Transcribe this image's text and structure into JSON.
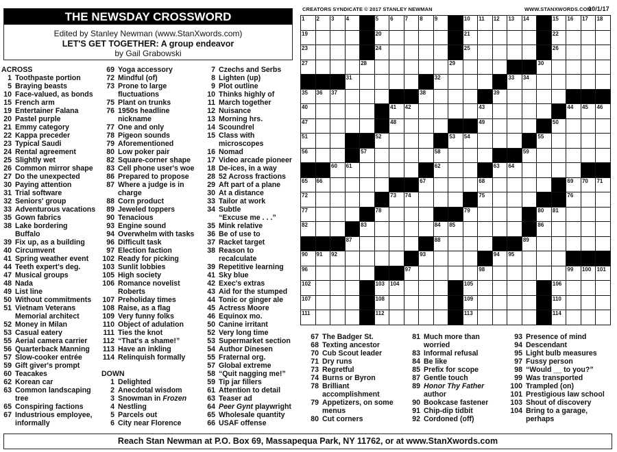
{
  "header": {
    "title": "THE NEWSDAY CROSSWORD",
    "editor": "Edited by Stanley Newman (www.StanXwords.com)",
    "puzzle_title": "LET'S GET TOGETHER: A group endeavor",
    "author": "by Gail Grabowski"
  },
  "top_bar": {
    "copyright": "CREATORS SYNDICATE © 2017 STANLEY NEWMAN",
    "website": "WWW.STANXWORDS.COM",
    "date": "10/1/17"
  },
  "footer": "Reach Stan Newman at P.O. Box 69, Massapequa Park, NY 11762, or at www.StanXwords.com",
  "grid": {
    "rows": [
      "....#.....#.....#....",
      "....#.....#.....#....",
      "....#.....#.....#....",
      "..............##.....",
      "###.....#....#.......",
      "......##....#.....###",
      ".....#...........#...",
      ".....#....##....#....",
      "...##....#.....#.....",
      "...#.........##......",
      "##......#...#......##",
      "......##.........#...",
      ".....#.....#....##...",
      "....#....##....#.....",
      "...#...........#.....",
      "###.....#....##......",
      ".......#....#.....###",
      ".....##..............",
      "....#.....#.....#....",
      "....#.....#.....#....",
      "....#.....#.....#...."
    ]
  },
  "across_label": "ACROSS",
  "down_label": "DOWN",
  "across": [
    {
      "n": "1",
      "t": "Toothpaste portion"
    },
    {
      "n": "5",
      "t": "Braying beasts"
    },
    {
      "n": "10",
      "t": "Face-valued, as bonds"
    },
    {
      "n": "15",
      "t": "French arm"
    },
    {
      "n": "19",
      "t": "Entertainer Falana"
    },
    {
      "n": "20",
      "t": "Pastel purple"
    },
    {
      "n": "21",
      "t": "Emmy category"
    },
    {
      "n": "22",
      "t": "Kappa preceder"
    },
    {
      "n": "23",
      "t": "Typical Saudi"
    },
    {
      "n": "24",
      "t": "Rental agreement"
    },
    {
      "n": "25",
      "t": "Slightly wet"
    },
    {
      "n": "26",
      "t": "Common mirror shape"
    },
    {
      "n": "27",
      "t": "Do the unexpected"
    },
    {
      "n": "30",
      "t": "Paying attention"
    },
    {
      "n": "31",
      "t": "Trial software"
    },
    {
      "n": "32",
      "t": "Seniors' group"
    },
    {
      "n": "33",
      "t": "Adventurous vacations"
    },
    {
      "n": "35",
      "t": "Gown fabrics"
    },
    {
      "n": "38",
      "t": "Lake bordering Buffalo"
    },
    {
      "n": "39",
      "t": "Fix up, as a building"
    },
    {
      "n": "40",
      "t": "Circumvent"
    },
    {
      "n": "41",
      "t": "Spring weather event"
    },
    {
      "n": "44",
      "t": "Teeth expert's deg."
    },
    {
      "n": "47",
      "t": "Musical groups"
    },
    {
      "n": "48",
      "t": "Nada"
    },
    {
      "n": "49",
      "t": "List line"
    },
    {
      "n": "50",
      "t": "Without commitments"
    },
    {
      "n": "51",
      "t": "Vietnam Veterans Memorial architect"
    },
    {
      "n": "52",
      "t": "Money in Milan"
    },
    {
      "n": "53",
      "t": "Casual eatery"
    },
    {
      "n": "55",
      "t": "Aerial camera carrier"
    },
    {
      "n": "56",
      "t": "Quarterback Manning"
    },
    {
      "n": "57",
      "t": "Slow-cooker entrée"
    },
    {
      "n": "59",
      "t": "Gift giver's prompt"
    },
    {
      "n": "60",
      "t": "Teacakes"
    },
    {
      "n": "62",
      "t": "Korean car"
    },
    {
      "n": "63",
      "t": "Common landscaping tree"
    },
    {
      "n": "65",
      "t": "Conspiring factions"
    },
    {
      "n": "67",
      "t": "Industrious employee, informally"
    },
    {
      "n": "69",
      "t": "Yoga accessory"
    },
    {
      "n": "72",
      "t": "Mindful (of)"
    },
    {
      "n": "73",
      "t": "Prone to large fluctuations"
    },
    {
      "n": "75",
      "t": "Plant on trunks"
    },
    {
      "n": "76",
      "t": "1950s headline nickname"
    },
    {
      "n": "77",
      "t": "One and only"
    },
    {
      "n": "78",
      "t": "Pigeon sounds"
    },
    {
      "n": "79",
      "t": "Aforementioned"
    },
    {
      "n": "80",
      "t": "Low poker pair"
    },
    {
      "n": "82",
      "t": "Square-corner shape"
    },
    {
      "n": "83",
      "t": "Cell phone user's woe"
    },
    {
      "n": "86",
      "t": "Prepared to propose"
    },
    {
      "n": "87",
      "t": "Where a judge is in charge"
    },
    {
      "n": "88",
      "t": "Corn product"
    },
    {
      "n": "89",
      "t": "Jeweled toppers"
    },
    {
      "n": "90",
      "t": "Tenacious"
    },
    {
      "n": "93",
      "t": "Engine sound"
    },
    {
      "n": "94",
      "t": "Overwhelm with tasks"
    },
    {
      "n": "96",
      "t": "Difficult task"
    },
    {
      "n": "97",
      "t": "Election faction"
    },
    {
      "n": "102",
      "t": "Ready for picking"
    },
    {
      "n": "103",
      "t": "Sunlit lobbies"
    },
    {
      "n": "105",
      "t": "High society"
    },
    {
      "n": "106",
      "t": "Romance novelist Roberts"
    },
    {
      "n": "107",
      "t": "Preholiday times"
    },
    {
      "n": "108",
      "t": "Raise, as a flag"
    },
    {
      "n": "109",
      "t": "Very funny folks"
    },
    {
      "n": "110",
      "t": "Object of adulation"
    },
    {
      "n": "111",
      "t": "Ties the knot"
    },
    {
      "n": "112",
      "t": "“That's a shame!”"
    },
    {
      "n": "113",
      "t": "Have an inkling"
    },
    {
      "n": "114",
      "t": "Relinquish formally"
    }
  ],
  "down": [
    {
      "n": "1",
      "t": "Delighted"
    },
    {
      "n": "2",
      "t": "Anecdotal wisdom"
    },
    {
      "n": "3",
      "t": "Snowman in Frozen",
      "i": "Frozen"
    },
    {
      "n": "4",
      "t": "Nestling"
    },
    {
      "n": "5",
      "t": "Parcels out"
    },
    {
      "n": "6",
      "t": "City near Florence"
    },
    {
      "n": "7",
      "t": "Czechs and Serbs"
    },
    {
      "n": "8",
      "t": "Lighten (up)"
    },
    {
      "n": "9",
      "t": "Plot outline"
    },
    {
      "n": "10",
      "t": "Thinks highly of"
    },
    {
      "n": "11",
      "t": "March together"
    },
    {
      "n": "12",
      "t": "Nuisance"
    },
    {
      "n": "13",
      "t": "Morning hrs."
    },
    {
      "n": "14",
      "t": "Scoundrel"
    },
    {
      "n": "15",
      "t": "Class with microscopes"
    },
    {
      "n": "16",
      "t": "Nomad"
    },
    {
      "n": "17",
      "t": "Video arcade pioneer"
    },
    {
      "n": "18",
      "t": "De-ices, in a way"
    },
    {
      "n": "28",
      "t": "52 Across fractions"
    },
    {
      "n": "29",
      "t": "Aft part of a plane"
    },
    {
      "n": "30",
      "t": "At a distance"
    },
    {
      "n": "33",
      "t": "Tailor at work"
    },
    {
      "n": "34",
      "t": "Subtle “Excuse me . . .”"
    },
    {
      "n": "35",
      "t": "Mink relative"
    },
    {
      "n": "36",
      "t": "Be of use to"
    },
    {
      "n": "37",
      "t": "Racket target"
    },
    {
      "n": "38",
      "t": "Reason to recalculate"
    },
    {
      "n": "39",
      "t": "Repetitive learning"
    },
    {
      "n": "41",
      "t": "Sky blue"
    },
    {
      "n": "42",
      "t": "Exec's extras"
    },
    {
      "n": "43",
      "t": "Aid for the stumped"
    },
    {
      "n": "44",
      "t": "Tonic or ginger ale"
    },
    {
      "n": "45",
      "t": "Actress Moore"
    },
    {
      "n": "46",
      "t": "Equinox mo."
    },
    {
      "n": "50",
      "t": "Canine irritant"
    },
    {
      "n": "52",
      "t": "Very long time"
    },
    {
      "n": "53",
      "t": "Supermarket section"
    },
    {
      "n": "54",
      "t": "Author Dinesen"
    },
    {
      "n": "55",
      "t": "Fraternal org."
    },
    {
      "n": "57",
      "t": "Global extreme"
    },
    {
      "n": "58",
      "t": "“Quit nagging me!”"
    },
    {
      "n": "59",
      "t": "Tip jar fillers"
    },
    {
      "n": "61",
      "t": "Attention to detail"
    },
    {
      "n": "63",
      "t": "Teaser ad"
    },
    {
      "n": "64",
      "t": "Peer Gynt playwright",
      "i": "Peer Gynt"
    },
    {
      "n": "65",
      "t": "Wholesale quantity"
    },
    {
      "n": "66",
      "t": "USAF offense"
    },
    {
      "n": "67",
      "t": "The Badger St."
    },
    {
      "n": "68",
      "t": "Texting ancestor"
    },
    {
      "n": "70",
      "t": "Cub Scout leader"
    },
    {
      "n": "71",
      "t": "Dry runs"
    },
    {
      "n": "73",
      "t": "Regretful"
    },
    {
      "n": "74",
      "t": "Burns or Byron"
    },
    {
      "n": "78",
      "t": "Brilliant accomplishment"
    },
    {
      "n": "79",
      "t": "Appetizers, on some menus"
    },
    {
      "n": "80",
      "t": "Cut corners"
    },
    {
      "n": "81",
      "t": "Much more than worried"
    },
    {
      "n": "83",
      "t": "Informal refusal"
    },
    {
      "n": "84",
      "t": "Be like"
    },
    {
      "n": "85",
      "t": "Prefix for scope"
    },
    {
      "n": "87",
      "t": "Gentle touch"
    },
    {
      "n": "89",
      "t": "Honor Thy Father author",
      "i": "Honor Thy Father"
    },
    {
      "n": "90",
      "t": "Bookcase fastener"
    },
    {
      "n": "91",
      "t": "Chip-dip tidbit"
    },
    {
      "n": "92",
      "t": "Cordoned (off)"
    },
    {
      "n": "93",
      "t": "Presence of mind"
    },
    {
      "n": "94",
      "t": "Descendant"
    },
    {
      "n": "95",
      "t": "Light bulb measures"
    },
    {
      "n": "97",
      "t": "Fussy person"
    },
    {
      "n": "98",
      "t": "“Would __ to you?”"
    },
    {
      "n": "99",
      "t": "Was transported"
    },
    {
      "n": "100",
      "t": "Trampled (on)"
    },
    {
      "n": "101",
      "t": "Prestigious law school"
    },
    {
      "n": "103",
      "t": "Shout of discovery"
    },
    {
      "n": "104",
      "t": "Bring to a garage, perhaps"
    }
  ]
}
